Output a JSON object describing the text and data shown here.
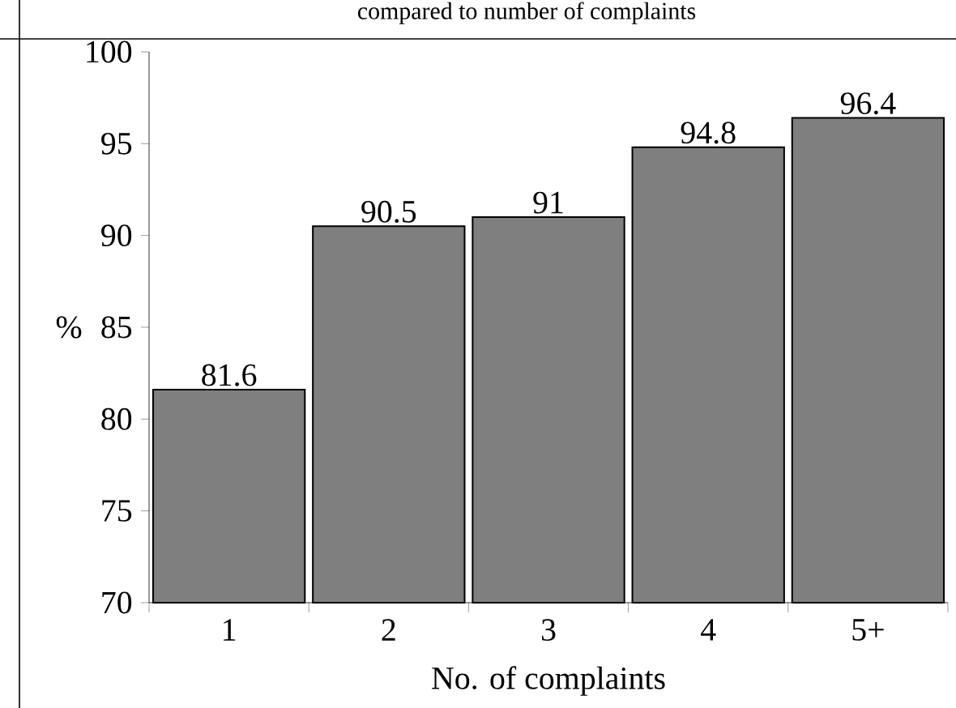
{
  "chart_data": {
    "type": "bar",
    "title": "compared to number of complaints",
    "xlabel": "No. of complaints",
    "ylabel": "%",
    "categories": [
      "1",
      "2",
      "3",
      "4",
      "5+"
    ],
    "values": [
      81.6,
      90.5,
      91,
      94.8,
      96.4
    ],
    "color": "#7f7f7f",
    "ylim": [
      70,
      100
    ],
    "yticks": [
      70,
      75,
      80,
      85,
      90,
      95,
      100
    ],
    "data_labels": true
  }
}
